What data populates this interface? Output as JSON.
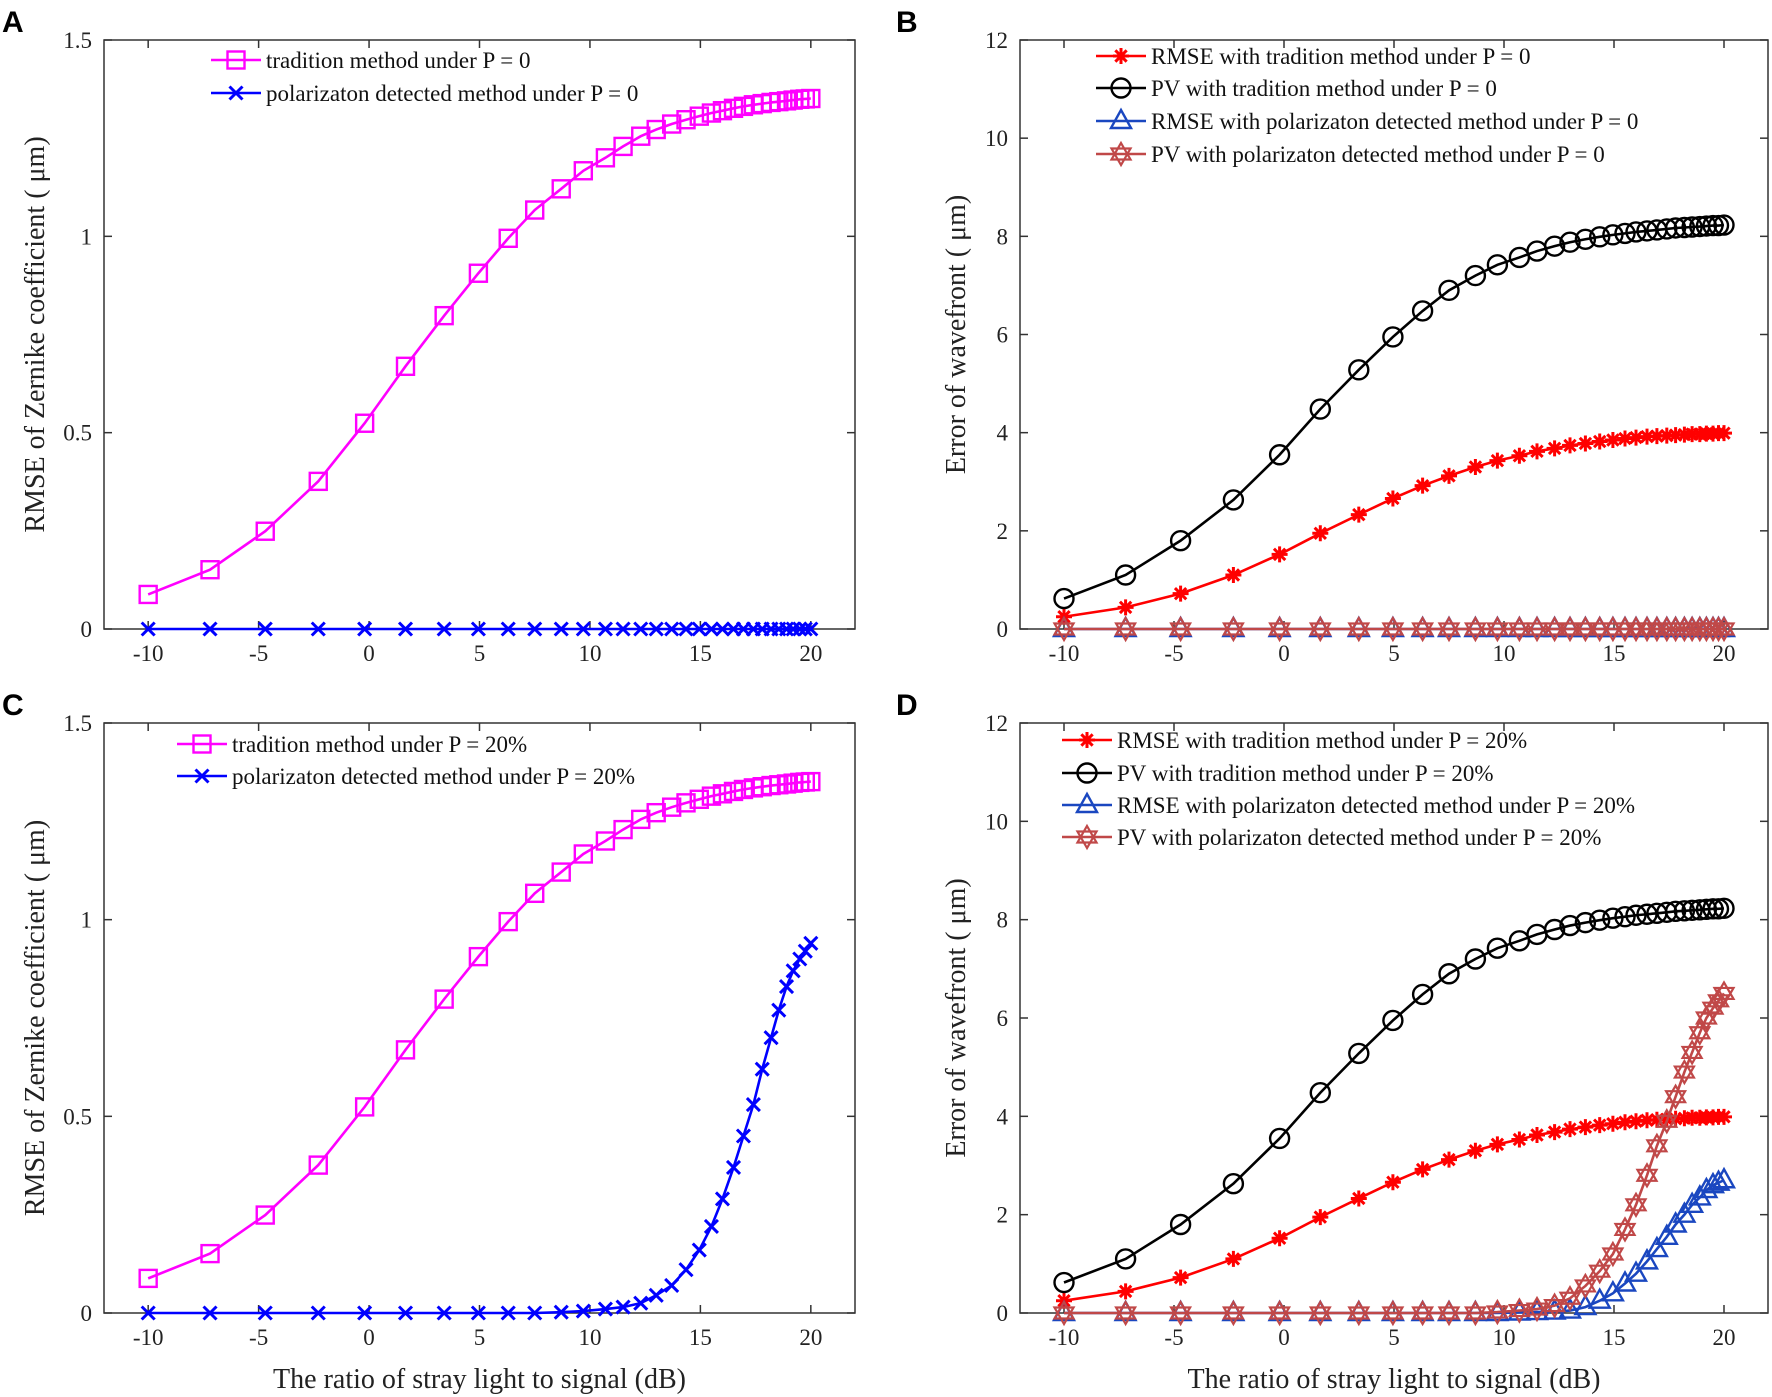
{
  "chart_data": [
    {
      "panel": "A",
      "type": "line",
      "xlabel": "",
      "ylabel": "RMSE of Zernike coefficient ( μm)",
      "xlim": [
        -12,
        22
      ],
      "ylim": [
        0,
        1.5
      ],
      "xticks": [
        "-10",
        "-5",
        "0",
        "5",
        "10",
        "15",
        "20"
      ],
      "yticks": [
        "0",
        "0.5",
        "1",
        "1.5"
      ],
      "legend_position": "top",
      "x": [
        -10,
        -7.2,
        -4.7,
        -2.3,
        -0.2,
        1.65,
        3.4,
        4.95,
        6.3,
        7.5,
        8.7,
        9.7,
        10.7,
        11.5,
        12.3,
        13.0,
        13.7,
        14.35,
        14.95,
        15.5,
        16.0,
        16.5,
        16.95,
        17.4,
        17.8,
        18.2,
        18.55,
        18.9,
        19.2,
        19.5,
        19.75,
        20
      ],
      "series": [
        {
          "name": "tradition method under P = 0",
          "marker": "square",
          "color": "#ff00ff",
          "values": [
            0.088,
            0.151,
            0.249,
            0.376,
            0.524,
            0.669,
            0.798,
            0.906,
            0.995,
            1.067,
            1.121,
            1.167,
            1.2,
            1.229,
            1.255,
            1.272,
            1.286,
            1.297,
            1.306,
            1.314,
            1.32,
            1.326,
            1.331,
            1.335,
            1.338,
            1.341,
            1.343,
            1.345,
            1.347,
            1.349,
            1.35,
            1.351
          ]
        },
        {
          "name": "polarizaton detected method under P = 0",
          "marker": "x",
          "color": "#0000ff",
          "values": [
            0,
            0,
            0,
            0,
            0,
            0,
            0,
            0,
            0,
            0,
            0,
            0,
            0,
            0,
            0,
            0,
            0,
            0,
            0,
            0,
            0,
            0,
            0,
            0,
            0,
            0,
            0,
            0,
            0,
            0,
            0,
            0
          ]
        }
      ]
    },
    {
      "panel": "B",
      "type": "line",
      "xlabel": "",
      "ylabel": "Error of wavefront ( μm)",
      "xlim": [
        -12,
        22
      ],
      "ylim": [
        0,
        12
      ],
      "xticks": [
        "-10",
        "-5",
        "0",
        "5",
        "10",
        "15",
        "20"
      ],
      "yticks": [
        "0",
        "2",
        "4",
        "6",
        "8",
        "10",
        "12"
      ],
      "legend_position": "top",
      "x": [
        -10,
        -7.2,
        -4.7,
        -2.3,
        -0.2,
        1.65,
        3.4,
        4.95,
        6.3,
        7.5,
        8.7,
        9.7,
        10.7,
        11.5,
        12.3,
        13.0,
        13.7,
        14.35,
        14.95,
        15.5,
        16.0,
        16.5,
        16.95,
        17.4,
        17.8,
        18.2,
        18.55,
        18.9,
        19.2,
        19.5,
        19.75,
        20
      ],
      "series": [
        {
          "name": "RMSE with tradition method under P = 0",
          "marker": "asterisk",
          "color": "#ff0000",
          "values": [
            0.25,
            0.44,
            0.72,
            1.1,
            1.52,
            1.95,
            2.33,
            2.66,
            2.92,
            3.12,
            3.3,
            3.43,
            3.53,
            3.62,
            3.68,
            3.74,
            3.78,
            3.82,
            3.85,
            3.88,
            3.9,
            3.92,
            3.93,
            3.94,
            3.95,
            3.96,
            3.97,
            3.97,
            3.98,
            3.98,
            3.99,
            3.99
          ]
        },
        {
          "name": "PV with tradition method under P = 0",
          "marker": "circle",
          "color": "#000000",
          "values": [
            0.62,
            1.1,
            1.8,
            2.63,
            3.55,
            4.48,
            5.28,
            5.95,
            6.48,
            6.9,
            7.2,
            7.42,
            7.57,
            7.7,
            7.8,
            7.88,
            7.94,
            7.99,
            8.03,
            8.06,
            8.09,
            8.11,
            8.13,
            8.15,
            8.17,
            8.18,
            8.19,
            8.2,
            8.21,
            8.22,
            8.22,
            8.23
          ]
        },
        {
          "name": "RMSE with polarizaton detected method under P = 0",
          "marker": "triangle",
          "color": "#1a47c0",
          "values": [
            0,
            0,
            0,
            0,
            0,
            0,
            0,
            0,
            0,
            0,
            0,
            0,
            0,
            0,
            0,
            0,
            0,
            0,
            0,
            0,
            0,
            0,
            0,
            0,
            0,
            0,
            0,
            0,
            0,
            0,
            0,
            0
          ]
        },
        {
          "name": "PV with polarizaton detected method under P = 0",
          "marker": "hexagram",
          "color": "#c04848",
          "values": [
            0,
            0,
            0,
            0,
            0,
            0,
            0,
            0,
            0,
            0,
            0,
            0,
            0,
            0,
            0,
            0,
            0,
            0,
            0,
            0,
            0,
            0,
            0,
            0,
            0,
            0,
            0,
            0,
            0,
            0,
            0,
            0
          ]
        }
      ]
    },
    {
      "panel": "C",
      "type": "line",
      "xlabel": "The ratio of stray light to signal (dB)",
      "ylabel": "RMSE of Zernike coefficient ( μm)",
      "xlim": [
        -12,
        22
      ],
      "ylim": [
        0,
        1.5
      ],
      "xticks": [
        "-10",
        "-5",
        "0",
        "5",
        "10",
        "15",
        "20"
      ],
      "yticks": [
        "0",
        "0.5",
        "1",
        "1.5"
      ],
      "legend_position": "top",
      "x": [
        -10,
        -7.2,
        -4.7,
        -2.3,
        -0.2,
        1.65,
        3.4,
        4.95,
        6.3,
        7.5,
        8.7,
        9.7,
        10.7,
        11.5,
        12.3,
        13.0,
        13.7,
        14.35,
        14.95,
        15.5,
        16.0,
        16.5,
        16.95,
        17.4,
        17.8,
        18.2,
        18.55,
        18.9,
        19.2,
        19.5,
        19.75,
        20
      ],
      "series": [
        {
          "name": "tradition method under P = 20%",
          "marker": "square",
          "color": "#ff00ff",
          "values": [
            0.088,
            0.151,
            0.249,
            0.376,
            0.524,
            0.669,
            0.798,
            0.906,
            0.995,
            1.067,
            1.121,
            1.167,
            1.2,
            1.229,
            1.255,
            1.272,
            1.286,
            1.297,
            1.306,
            1.314,
            1.32,
            1.326,
            1.331,
            1.335,
            1.338,
            1.341,
            1.343,
            1.345,
            1.347,
            1.349,
            1.35,
            1.351
          ]
        },
        {
          "name": "polarizaton detected method under P = 20%",
          "marker": "x",
          "color": "#0000ff",
          "values": [
            0,
            0,
            0,
            0,
            0,
            0,
            0,
            0,
            0,
            0,
            0.002,
            0.005,
            0.01,
            0.015,
            0.025,
            0.045,
            0.07,
            0.11,
            0.16,
            0.22,
            0.29,
            0.37,
            0.45,
            0.53,
            0.62,
            0.7,
            0.77,
            0.83,
            0.87,
            0.9,
            0.92,
            0.94
          ]
        }
      ]
    },
    {
      "panel": "D",
      "type": "line",
      "xlabel": "The ratio of stray light to signal (dB)",
      "ylabel": "Error of wavefront ( μm)",
      "xlim": [
        -12,
        22
      ],
      "ylim": [
        0,
        12
      ],
      "xticks": [
        "-10",
        "-5",
        "0",
        "5",
        "10",
        "15",
        "20"
      ],
      "yticks": [
        "0",
        "2",
        "4",
        "6",
        "8",
        "10",
        "12"
      ],
      "legend_position": "top",
      "x": [
        -10,
        -7.2,
        -4.7,
        -2.3,
        -0.2,
        1.65,
        3.4,
        4.95,
        6.3,
        7.5,
        8.7,
        9.7,
        10.7,
        11.5,
        12.3,
        13.0,
        13.7,
        14.35,
        14.95,
        15.5,
        16.0,
        16.5,
        16.95,
        17.4,
        17.8,
        18.2,
        18.55,
        18.9,
        19.2,
        19.5,
        19.75,
        20
      ],
      "series": [
        {
          "name": "RMSE with tradition method under P = 20%",
          "marker": "asterisk",
          "color": "#ff0000",
          "values": [
            0.25,
            0.44,
            0.72,
            1.1,
            1.52,
            1.95,
            2.33,
            2.66,
            2.92,
            3.12,
            3.3,
            3.43,
            3.53,
            3.62,
            3.68,
            3.74,
            3.78,
            3.82,
            3.85,
            3.88,
            3.9,
            3.92,
            3.93,
            3.94,
            3.95,
            3.96,
            3.97,
            3.97,
            3.98,
            3.98,
            3.99,
            3.99
          ]
        },
        {
          "name": "PV with tradition method under P = 20%",
          "marker": "circle",
          "color": "#000000",
          "values": [
            0.62,
            1.1,
            1.8,
            2.63,
            3.55,
            4.48,
            5.28,
            5.95,
            6.48,
            6.9,
            7.2,
            7.42,
            7.57,
            7.7,
            7.8,
            7.88,
            7.94,
            7.99,
            8.03,
            8.06,
            8.09,
            8.11,
            8.13,
            8.15,
            8.17,
            8.18,
            8.19,
            8.2,
            8.21,
            8.22,
            8.22,
            8.23
          ]
        },
        {
          "name": "RMSE with polarizaton detected method under P = 20%",
          "marker": "triangle",
          "color": "#1a47c0",
          "values": [
            0,
            0,
            0,
            0,
            0,
            0,
            0,
            0,
            0,
            0,
            0,
            0,
            0.01,
            0.02,
            0.03,
            0.05,
            0.12,
            0.25,
            0.4,
            0.6,
            0.8,
            1.05,
            1.3,
            1.55,
            1.8,
            2.0,
            2.2,
            2.35,
            2.5,
            2.6,
            2.65,
            2.7
          ]
        },
        {
          "name": "PV with polarizaton detected method under P = 20%",
          "marker": "hexagram",
          "color": "#c04848",
          "values": [
            0,
            0,
            0,
            0,
            0,
            0,
            0,
            0,
            0,
            0,
            0,
            0.02,
            0.05,
            0.08,
            0.15,
            0.3,
            0.55,
            0.85,
            1.2,
            1.7,
            2.2,
            2.8,
            3.4,
            3.9,
            4.4,
            4.9,
            5.3,
            5.7,
            6.0,
            6.2,
            6.35,
            6.5
          ]
        }
      ]
    }
  ]
}
